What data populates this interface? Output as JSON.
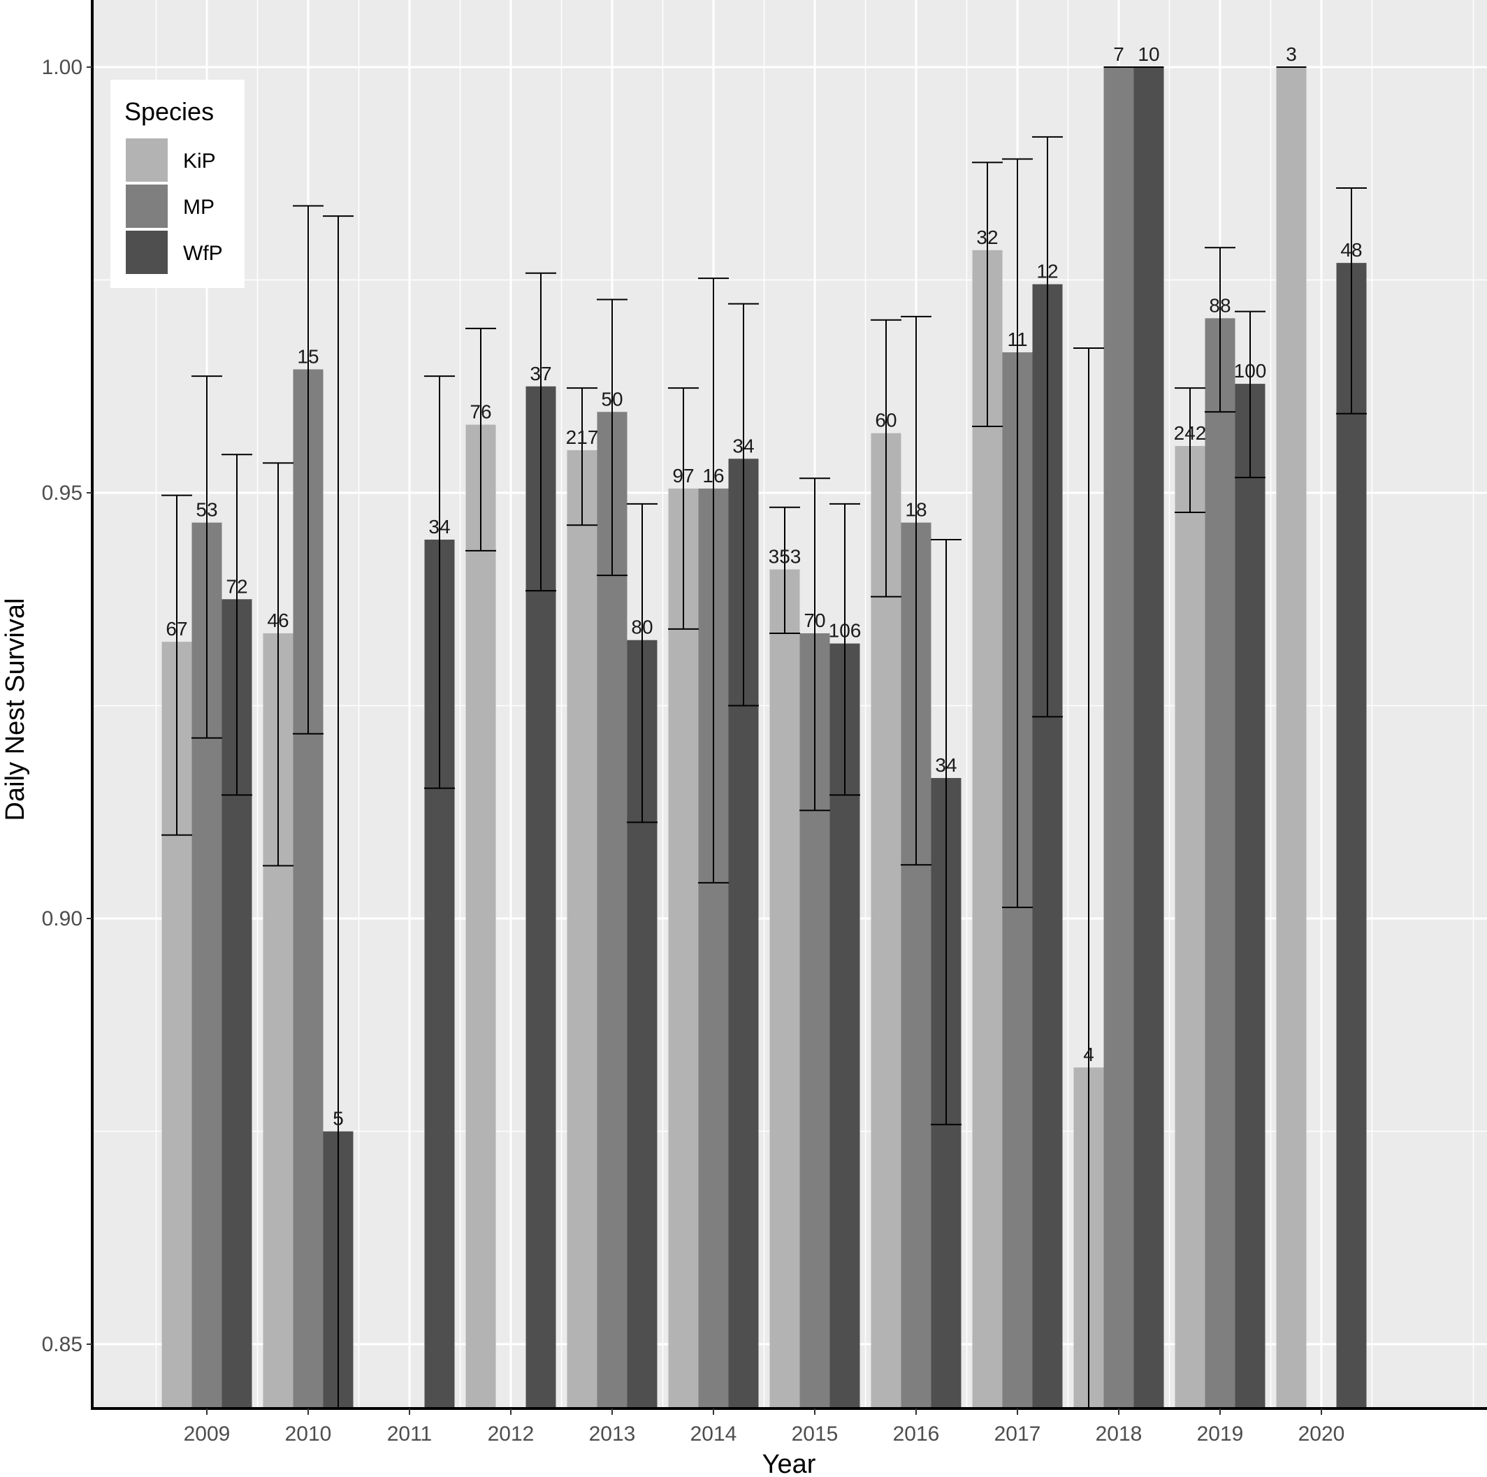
{
  "chart_data": {
    "type": "bar",
    "xlabel": "Year",
    "ylabel": "Daily Nest Survival",
    "ylim": [
      0.8425,
      1.0075
    ],
    "yticks": [
      "0.85",
      "0.90",
      "0.95",
      "1.00"
    ],
    "grid": true,
    "legend": {
      "title": "Species",
      "position": "top-left"
    },
    "categories": [
      "2009",
      "2010",
      "2011",
      "2012",
      "2013",
      "2014",
      "2015",
      "2016",
      "2017",
      "2018",
      "2019",
      "2020"
    ],
    "series": [
      {
        "name": "KiP",
        "color": "#b3b3b3",
        "values": [
          0.9325,
          0.9335,
          null,
          0.958,
          0.955,
          0.9505,
          0.941,
          0.957,
          0.9785,
          0.8825,
          0.9555,
          1.0
        ],
        "ci_low": [
          0.9098,
          0.9062,
          null,
          0.9432,
          0.9462,
          0.934,
          0.9335,
          0.9378,
          0.9578,
          0.8425,
          0.9477,
          null
        ],
        "ci_high": [
          0.9497,
          0.9535,
          null,
          0.9693,
          0.9623,
          0.9623,
          0.9483,
          0.9703,
          0.9888,
          0.967,
          0.9623,
          null
        ],
        "labels": [
          "67",
          "46",
          "",
          "76",
          "217",
          "97",
          "353",
          "60",
          "32",
          "4",
          "242",
          "3"
        ]
      },
      {
        "name": "MP",
        "color": "#7f7f7f",
        "values": [
          0.9465,
          0.9645,
          null,
          null,
          0.9595,
          0.9505,
          0.9335,
          0.9465,
          0.9665,
          1.0,
          0.9705,
          null
        ],
        "ci_low": [
          0.9212,
          0.9217,
          null,
          null,
          0.9403,
          0.9042,
          0.9127,
          0.9063,
          0.9013,
          null,
          0.9595,
          null
        ],
        "ci_high": [
          0.9637,
          0.9837,
          null,
          null,
          0.9727,
          0.9752,
          0.9517,
          0.9707,
          0.9892,
          null,
          0.9788,
          null
        ],
        "labels": [
          "53",
          "15",
          "",
          "",
          "50",
          "16",
          "70",
          "18",
          "11",
          "7",
          "88",
          ""
        ]
      },
      {
        "name": "WfP",
        "color": "#4f4f4f",
        "values": [
          0.9375,
          0.875,
          0.9445,
          0.9625,
          0.9327,
          0.954,
          0.9323,
          0.9165,
          0.9745,
          1.0,
          0.9628,
          0.977
        ],
        "ci_low": [
          0.9145,
          0.8425,
          0.9153,
          0.9385,
          0.9113,
          0.925,
          0.9145,
          0.8758,
          0.9237,
          null,
          0.9518,
          0.9593
        ],
        "ci_high": [
          0.9545,
          0.9825,
          0.9637,
          0.9758,
          0.9487,
          0.9722,
          0.9487,
          0.9445,
          0.9918,
          null,
          0.9713,
          0.9858
        ],
        "labels": [
          "72",
          "5",
          "34",
          "37",
          "80",
          "34",
          "106",
          "34",
          "12",
          "10",
          "100",
          "48"
        ]
      }
    ]
  }
}
